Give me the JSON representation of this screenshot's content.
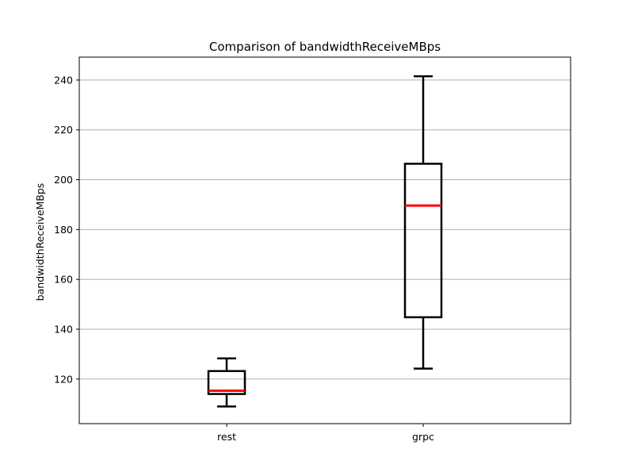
{
  "chart_data": {
    "type": "boxplot",
    "title": "Comparison of bandwidthReceiveMBps",
    "xlabel": "",
    "ylabel": "bandwidthReceiveMBps",
    "categories": [
      "rest",
      "grpc"
    ],
    "boxes": [
      {
        "category": "rest",
        "whisker_low": 109.0,
        "q1": 114.0,
        "median": 115.3,
        "q3": 123.2,
        "whisker_high": 128.3
      },
      {
        "category": "grpc",
        "whisker_low": 124.2,
        "q1": 144.8,
        "median": 189.6,
        "q3": 206.4,
        "whisker_high": 241.5
      }
    ],
    "ylim": [
      102.1,
      249.2
    ],
    "y_ticks": [
      120,
      140,
      160,
      180,
      200,
      220,
      240
    ],
    "grid": "horizontal",
    "colors": {
      "box": "#000000",
      "median": "#ff0000",
      "grid": "#b0b0b0"
    }
  }
}
